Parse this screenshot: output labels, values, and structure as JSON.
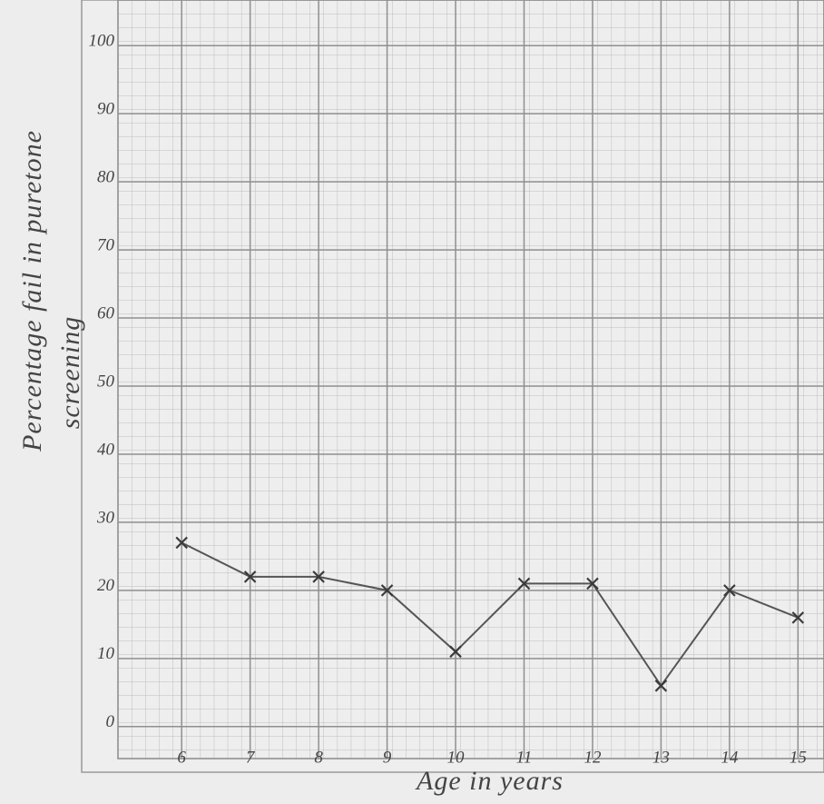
{
  "chart_data": {
    "type": "line",
    "x_label": "Age in years",
    "y_label": "Percentage fail in puretone",
    "y_label_2": "screening",
    "x": [
      6,
      7,
      8,
      9,
      10,
      11,
      12,
      13,
      14,
      15
    ],
    "series": [
      {
        "color": "#555555",
        "values": [
          27,
          22,
          22,
          20,
          11,
          21,
          21,
          6,
          20,
          16
        ]
      }
    ],
    "xlim": [
      5.07,
      15.38
    ],
    "xticks": [
      6,
      7,
      8,
      9,
      10,
      11,
      12,
      13,
      14,
      15
    ],
    "ylim": [
      -4.7,
      106.7
    ],
    "yticks": [
      0,
      10,
      20,
      30,
      40,
      50,
      60,
      70,
      80,
      90,
      100
    ],
    "grid": true
  }
}
